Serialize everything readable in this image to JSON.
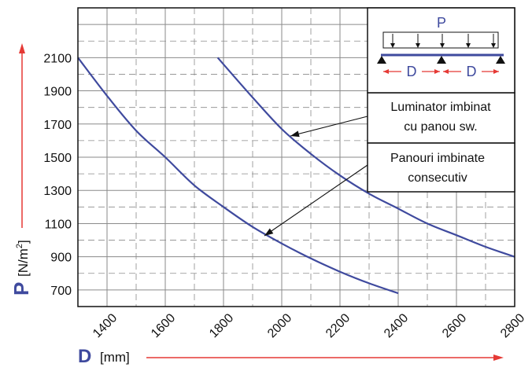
{
  "chart_data": {
    "type": "line",
    "xlabel_symbol": "D",
    "xlabel_unit": "[mm]",
    "ylabel_symbol": "P",
    "ylabel_unit_prefix": "[N/m",
    "ylabel_unit_exp": "2",
    "ylabel_unit_suffix": "]",
    "xlim": [
      1300,
      2800
    ],
    "ylim": [
      600,
      2400
    ],
    "x_ticks": [
      1400,
      1600,
      1800,
      2000,
      2200,
      2400,
      2600,
      2800
    ],
    "y_ticks": [
      700,
      900,
      1100,
      1300,
      1500,
      1700,
      1900,
      2100
    ],
    "grid": true,
    "series": [
      {
        "x": [
          1300,
          1400,
          1500,
          1600,
          1700,
          1800,
          1900,
          2000,
          2100,
          2200,
          2300,
          2400
        ],
        "y": [
          2100,
          1870,
          1660,
          1500,
          1330,
          1200,
          1080,
          980,
          890,
          810,
          740,
          680
        ]
      },
      {
        "x": [
          1780,
          1900,
          2000,
          2100,
          2200,
          2300,
          2400,
          2500,
          2600,
          2700,
          2800
        ],
        "y": [
          2100,
          1860,
          1670,
          1520,
          1390,
          1280,
          1190,
          1100,
          1030,
          960,
          900
        ]
      }
    ],
    "annotations": [
      {
        "lines": [
          "Luminator imbinat",
          "cu panou sw."
        ],
        "target_series": 1
      },
      {
        "lines": [
          "Panouri imbinate",
          "consecutiv"
        ],
        "target_series": 0
      }
    ],
    "inset": {
      "load_label": "P",
      "span_label": "D"
    },
    "colors": {
      "series": "#3f4a9e",
      "axis_label": "#3f4a9e",
      "arrow": "#e53935",
      "inset_accent": "#3f4a9e",
      "grid": "#8a8a8a"
    }
  }
}
